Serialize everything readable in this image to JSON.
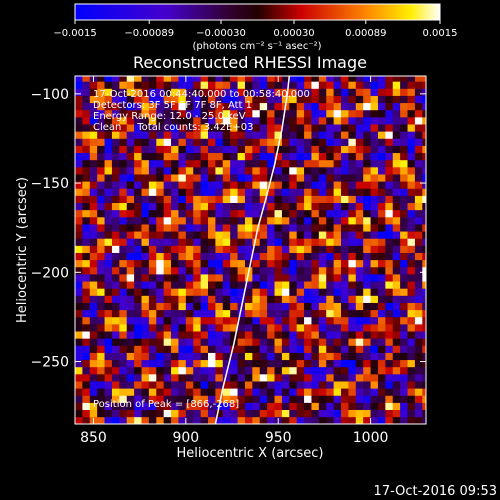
{
  "chart_data": {
    "type": "heatmap",
    "title": "Reconstructed RHESSI Image",
    "xlabel": "Heliocentric X (arcsec)",
    "ylabel": "Heliocentric Y (arcsec)",
    "xlim": [
      840,
      1030
    ],
    "ylim": [
      -285,
      -90
    ],
    "x_ticks": [
      850,
      900,
      950,
      1000
    ],
    "y_ticks": [
      -100,
      -150,
      -200,
      -250
    ],
    "x_tick_labels": [
      "850",
      "900",
      "950",
      "1000"
    ],
    "y_tick_labels": [
      "−100",
      "−150",
      "−200",
      "−250"
    ],
    "colorbar": {
      "min": -0.0015,
      "max": 0.0015,
      "ticks": [
        -0.0015,
        -0.00089,
        -0.0003,
        0.0003,
        0.00089,
        0.0015
      ],
      "tick_labels": [
        "−0.0015",
        "−0.00089",
        "−0.00030",
        "0.00030",
        "0.00089",
        "0.0015"
      ],
      "units": "(photons cm⁻² s⁻¹ asec⁻²)",
      "colormap": "blue-purple-red-yellow-white"
    },
    "annotations": {
      "time_range": "17-Oct-2016 00:44:40.000 to 00:58:40.000",
      "detectors": "Detectors: 3F 5F 6F 7F 8F, Att 1",
      "energy_range": "Energy Range: 12.0 - 25.0 keV",
      "method_counts": "Clean     Total counts: 3.42E+03",
      "peak": "Position of Peak = [866,-268]"
    },
    "limb": [
      [
        956,
        -90
      ],
      [
        955,
        -100
      ],
      [
        952,
        -120
      ],
      [
        948,
        -140
      ],
      [
        943,
        -160
      ],
      [
        939,
        -175
      ],
      [
        935,
        -195
      ],
      [
        931,
        -215
      ],
      [
        926,
        -240
      ],
      [
        920,
        -265
      ],
      [
        916,
        -285
      ]
    ],
    "pixel_size_arcsec": 4,
    "grid": false
  },
  "footer": {
    "timestamp": "17-Oct-2016 09:53"
  },
  "colors": {
    "background": "#000000",
    "foreground": "#ffffff",
    "limb": "#ffffff"
  }
}
